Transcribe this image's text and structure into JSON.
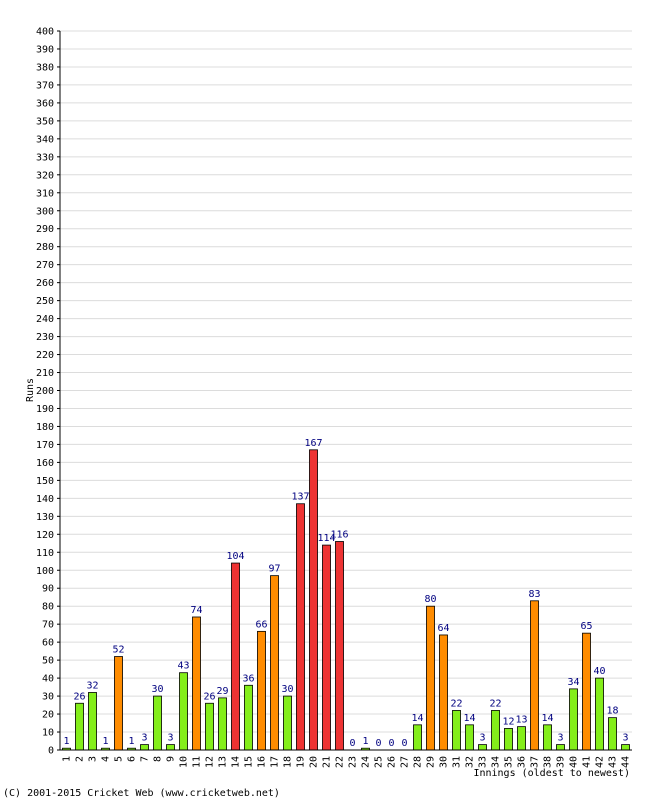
{
  "chart_data": {
    "type": "bar",
    "xlabel": "Innings (oldest to newest)",
    "ylabel": "Runs",
    "ylim": [
      0,
      400
    ],
    "ytick_step": 10,
    "grid": true,
    "categories": [
      "1",
      "2",
      "3",
      "4",
      "5",
      "6",
      "7",
      "8",
      "9",
      "10",
      "11",
      "12",
      "13",
      "14",
      "15",
      "16",
      "17",
      "18",
      "19",
      "20",
      "21",
      "22",
      "23",
      "24",
      "25",
      "26",
      "27",
      "28",
      "29",
      "30",
      "31",
      "32",
      "33",
      "34",
      "35",
      "36",
      "37",
      "38",
      "39",
      "40",
      "41",
      "42",
      "43",
      "44"
    ],
    "values": [
      1,
      26,
      32,
      1,
      52,
      1,
      3,
      30,
      3,
      43,
      74,
      26,
      29,
      104,
      36,
      66,
      97,
      30,
      137,
      167,
      114,
      116,
      0,
      1,
      0,
      0,
      0,
      14,
      80,
      64,
      22,
      14,
      3,
      22,
      12,
      13,
      83,
      14,
      3,
      34,
      65,
      40,
      18,
      3
    ],
    "bar_colors": {
      "under_50": "#84ee1a",
      "fifty": "#ff8c00",
      "hundred": "#ee3333"
    },
    "copyright": "(C) 2001-2015 Cricket Web (www.cricketweb.net)"
  }
}
